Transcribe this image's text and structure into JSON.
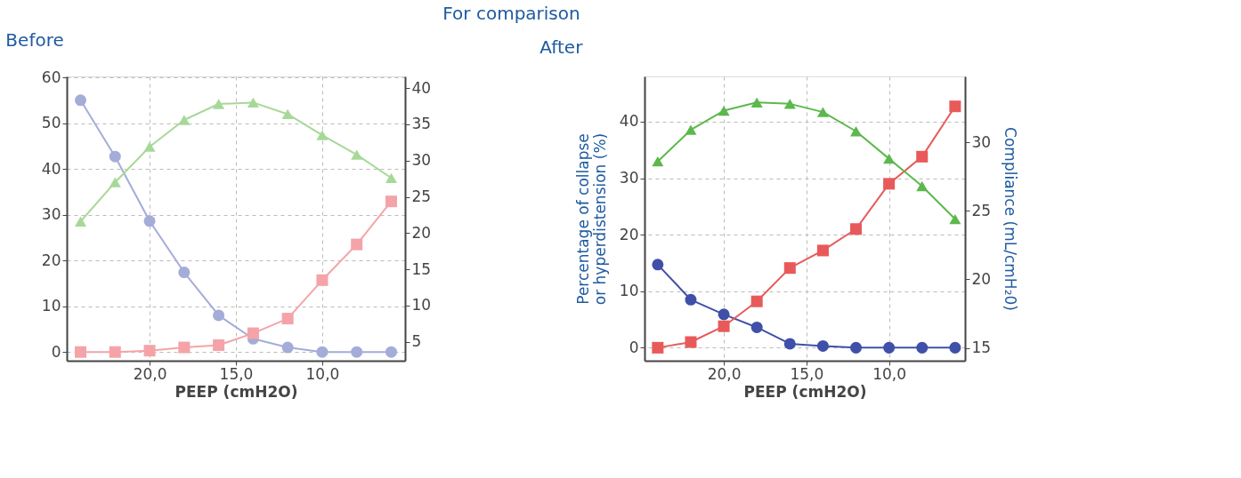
{
  "chart_data": [
    {
      "type": "line",
      "title": "Before",
      "annotations": [
        "For comparison"
      ],
      "xlabel": "PEEP (cmH2O)",
      "x": [
        24,
        22,
        20,
        18,
        16,
        14,
        12,
        10,
        8,
        6
      ],
      "xlim": [
        24.8,
        5.2
      ],
      "xticks": [
        {
          "value": 20,
          "label": "20,0"
        },
        {
          "value": 15,
          "label": "15,0"
        },
        {
          "value": 10,
          "label": "10,0"
        }
      ],
      "ylim": [
        -1.9,
        60.2
      ],
      "yticks": [
        0,
        10,
        20,
        30,
        40,
        50,
        60
      ],
      "y2lim": [
        2.4,
        41.6
      ],
      "y2ticks": [
        5,
        10,
        15,
        20,
        25,
        30,
        35,
        40
      ],
      "grid": true,
      "line_style": "solid",
      "series": [
        {
          "color": "#a4acd8",
          "marker": "circle",
          "values": [
            55.0,
            42.7,
            28.6,
            17.4,
            8.0,
            2.9,
            1.0,
            0,
            0,
            0
          ]
        },
        {
          "color": "#f4a4a8",
          "marker": "square",
          "values": [
            0,
            0,
            0.3,
            1.0,
            1.5,
            4.1,
            7.3,
            15.7,
            23.5,
            32.9
          ]
        },
        {
          "color": "#a8d898",
          "marker": "triangle",
          "axis": "y2",
          "values": [
            21.6,
            27.0,
            31.9,
            35.6,
            37.8,
            38.0,
            36.4,
            33.5,
            30.8,
            27.6
          ]
        }
      ]
    },
    {
      "type": "line",
      "title": "After",
      "xlabel": "PEEP (cmH2O)",
      "ylabel": "Percentage of collapse\nor hyperdistension (%)",
      "y2label": "Compliance (mL/cmH₂0)",
      "x": [
        24,
        22,
        20,
        18,
        16,
        14,
        12,
        10,
        8,
        6
      ],
      "xlim": [
        24.8,
        5.4
      ],
      "xticks": [
        {
          "value": 20,
          "label": "20,0"
        },
        {
          "value": 15,
          "label": "15,0"
        },
        {
          "value": 10,
          "label": "10,0"
        }
      ],
      "ylim": [
        -2.3,
        48.0
      ],
      "yticks": [
        0,
        10,
        20,
        30,
        40
      ],
      "y2lim": [
        14.07,
        34.8
      ],
      "y2ticks": [
        15,
        20,
        25,
        30
      ],
      "grid": true,
      "line_style": "solid",
      "series": [
        {
          "color": "#4050a8",
          "marker": "circle",
          "values": [
            14.7,
            8.5,
            5.9,
            3.6,
            0.7,
            0.3,
            0,
            0,
            0,
            0
          ]
        },
        {
          "color": "#e85a5a",
          "marker": "square",
          "values": [
            0,
            1.0,
            3.8,
            8.2,
            14.1,
            17.2,
            21.0,
            29.0,
            33.8,
            42.7
          ]
        },
        {
          "color": "#5cb84c",
          "marker": "triangle",
          "axis": "y2",
          "values": [
            28.6,
            30.9,
            32.3,
            32.9,
            32.8,
            32.2,
            30.8,
            28.8,
            26.8,
            24.4
          ]
        }
      ]
    }
  ]
}
